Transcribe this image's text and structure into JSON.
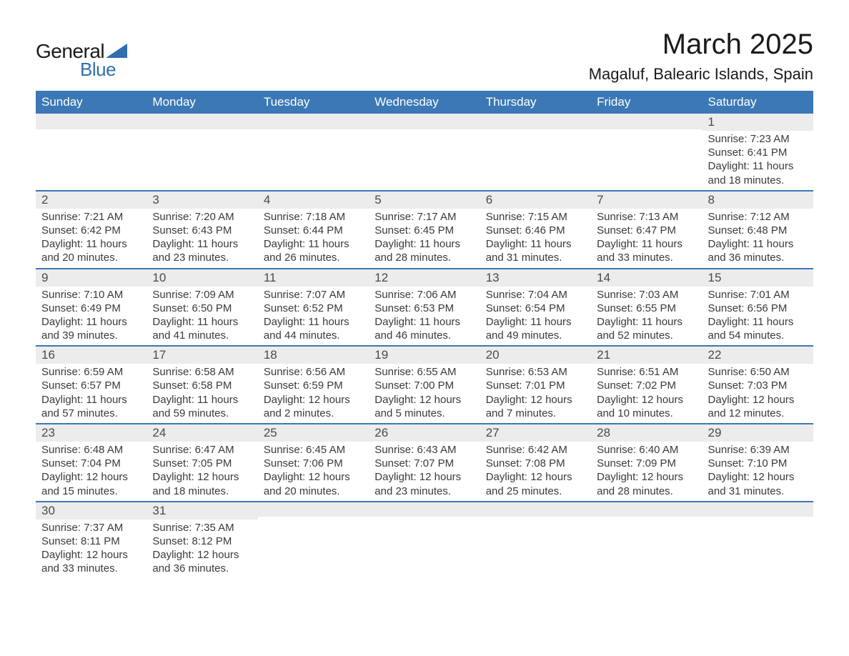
{
  "logo": {
    "text1": "General",
    "text2": "Blue",
    "triangle_color": "#2f6fb0"
  },
  "title": {
    "month": "March 2025",
    "location": "Magaluf, Balearic Islands, Spain"
  },
  "colors": {
    "header_bg": "#3b78b5",
    "header_text": "#ffffff",
    "daynum_bg": "#ececec",
    "row_border": "#3b78b5",
    "body_text": "#3a3a3a"
  },
  "day_headers": [
    "Sunday",
    "Monday",
    "Tuesday",
    "Wednesday",
    "Thursday",
    "Friday",
    "Saturday"
  ],
  "weeks": [
    [
      {
        "n": "",
        "sr": "",
        "ss": "",
        "dl": ""
      },
      {
        "n": "",
        "sr": "",
        "ss": "",
        "dl": ""
      },
      {
        "n": "",
        "sr": "",
        "ss": "",
        "dl": ""
      },
      {
        "n": "",
        "sr": "",
        "ss": "",
        "dl": ""
      },
      {
        "n": "",
        "sr": "",
        "ss": "",
        "dl": ""
      },
      {
        "n": "",
        "sr": "",
        "ss": "",
        "dl": ""
      },
      {
        "n": "1",
        "sr": "Sunrise: 7:23 AM",
        "ss": "Sunset: 6:41 PM",
        "dl": "Daylight: 11 hours and 18 minutes."
      }
    ],
    [
      {
        "n": "2",
        "sr": "Sunrise: 7:21 AM",
        "ss": "Sunset: 6:42 PM",
        "dl": "Daylight: 11 hours and 20 minutes."
      },
      {
        "n": "3",
        "sr": "Sunrise: 7:20 AM",
        "ss": "Sunset: 6:43 PM",
        "dl": "Daylight: 11 hours and 23 minutes."
      },
      {
        "n": "4",
        "sr": "Sunrise: 7:18 AM",
        "ss": "Sunset: 6:44 PM",
        "dl": "Daylight: 11 hours and 26 minutes."
      },
      {
        "n": "5",
        "sr": "Sunrise: 7:17 AM",
        "ss": "Sunset: 6:45 PM",
        "dl": "Daylight: 11 hours and 28 minutes."
      },
      {
        "n": "6",
        "sr": "Sunrise: 7:15 AM",
        "ss": "Sunset: 6:46 PM",
        "dl": "Daylight: 11 hours and 31 minutes."
      },
      {
        "n": "7",
        "sr": "Sunrise: 7:13 AM",
        "ss": "Sunset: 6:47 PM",
        "dl": "Daylight: 11 hours and 33 minutes."
      },
      {
        "n": "8",
        "sr": "Sunrise: 7:12 AM",
        "ss": "Sunset: 6:48 PM",
        "dl": "Daylight: 11 hours and 36 minutes."
      }
    ],
    [
      {
        "n": "9",
        "sr": "Sunrise: 7:10 AM",
        "ss": "Sunset: 6:49 PM",
        "dl": "Daylight: 11 hours and 39 minutes."
      },
      {
        "n": "10",
        "sr": "Sunrise: 7:09 AM",
        "ss": "Sunset: 6:50 PM",
        "dl": "Daylight: 11 hours and 41 minutes."
      },
      {
        "n": "11",
        "sr": "Sunrise: 7:07 AM",
        "ss": "Sunset: 6:52 PM",
        "dl": "Daylight: 11 hours and 44 minutes."
      },
      {
        "n": "12",
        "sr": "Sunrise: 7:06 AM",
        "ss": "Sunset: 6:53 PM",
        "dl": "Daylight: 11 hours and 46 minutes."
      },
      {
        "n": "13",
        "sr": "Sunrise: 7:04 AM",
        "ss": "Sunset: 6:54 PM",
        "dl": "Daylight: 11 hours and 49 minutes."
      },
      {
        "n": "14",
        "sr": "Sunrise: 7:03 AM",
        "ss": "Sunset: 6:55 PM",
        "dl": "Daylight: 11 hours and 52 minutes."
      },
      {
        "n": "15",
        "sr": "Sunrise: 7:01 AM",
        "ss": "Sunset: 6:56 PM",
        "dl": "Daylight: 11 hours and 54 minutes."
      }
    ],
    [
      {
        "n": "16",
        "sr": "Sunrise: 6:59 AM",
        "ss": "Sunset: 6:57 PM",
        "dl": "Daylight: 11 hours and 57 minutes."
      },
      {
        "n": "17",
        "sr": "Sunrise: 6:58 AM",
        "ss": "Sunset: 6:58 PM",
        "dl": "Daylight: 11 hours and 59 minutes."
      },
      {
        "n": "18",
        "sr": "Sunrise: 6:56 AM",
        "ss": "Sunset: 6:59 PM",
        "dl": "Daylight: 12 hours and 2 minutes."
      },
      {
        "n": "19",
        "sr": "Sunrise: 6:55 AM",
        "ss": "Sunset: 7:00 PM",
        "dl": "Daylight: 12 hours and 5 minutes."
      },
      {
        "n": "20",
        "sr": "Sunrise: 6:53 AM",
        "ss": "Sunset: 7:01 PM",
        "dl": "Daylight: 12 hours and 7 minutes."
      },
      {
        "n": "21",
        "sr": "Sunrise: 6:51 AM",
        "ss": "Sunset: 7:02 PM",
        "dl": "Daylight: 12 hours and 10 minutes."
      },
      {
        "n": "22",
        "sr": "Sunrise: 6:50 AM",
        "ss": "Sunset: 7:03 PM",
        "dl": "Daylight: 12 hours and 12 minutes."
      }
    ],
    [
      {
        "n": "23",
        "sr": "Sunrise: 6:48 AM",
        "ss": "Sunset: 7:04 PM",
        "dl": "Daylight: 12 hours and 15 minutes."
      },
      {
        "n": "24",
        "sr": "Sunrise: 6:47 AM",
        "ss": "Sunset: 7:05 PM",
        "dl": "Daylight: 12 hours and 18 minutes."
      },
      {
        "n": "25",
        "sr": "Sunrise: 6:45 AM",
        "ss": "Sunset: 7:06 PM",
        "dl": "Daylight: 12 hours and 20 minutes."
      },
      {
        "n": "26",
        "sr": "Sunrise: 6:43 AM",
        "ss": "Sunset: 7:07 PM",
        "dl": "Daylight: 12 hours and 23 minutes."
      },
      {
        "n": "27",
        "sr": "Sunrise: 6:42 AM",
        "ss": "Sunset: 7:08 PM",
        "dl": "Daylight: 12 hours and 25 minutes."
      },
      {
        "n": "28",
        "sr": "Sunrise: 6:40 AM",
        "ss": "Sunset: 7:09 PM",
        "dl": "Daylight: 12 hours and 28 minutes."
      },
      {
        "n": "29",
        "sr": "Sunrise: 6:39 AM",
        "ss": "Sunset: 7:10 PM",
        "dl": "Daylight: 12 hours and 31 minutes."
      }
    ],
    [
      {
        "n": "30",
        "sr": "Sunrise: 7:37 AM",
        "ss": "Sunset: 8:11 PM",
        "dl": "Daylight: 12 hours and 33 minutes."
      },
      {
        "n": "31",
        "sr": "Sunrise: 7:35 AM",
        "ss": "Sunset: 8:12 PM",
        "dl": "Daylight: 12 hours and 36 minutes."
      },
      {
        "n": "",
        "sr": "",
        "ss": "",
        "dl": ""
      },
      {
        "n": "",
        "sr": "",
        "ss": "",
        "dl": ""
      },
      {
        "n": "",
        "sr": "",
        "ss": "",
        "dl": ""
      },
      {
        "n": "",
        "sr": "",
        "ss": "",
        "dl": ""
      },
      {
        "n": "",
        "sr": "",
        "ss": "",
        "dl": ""
      }
    ]
  ]
}
